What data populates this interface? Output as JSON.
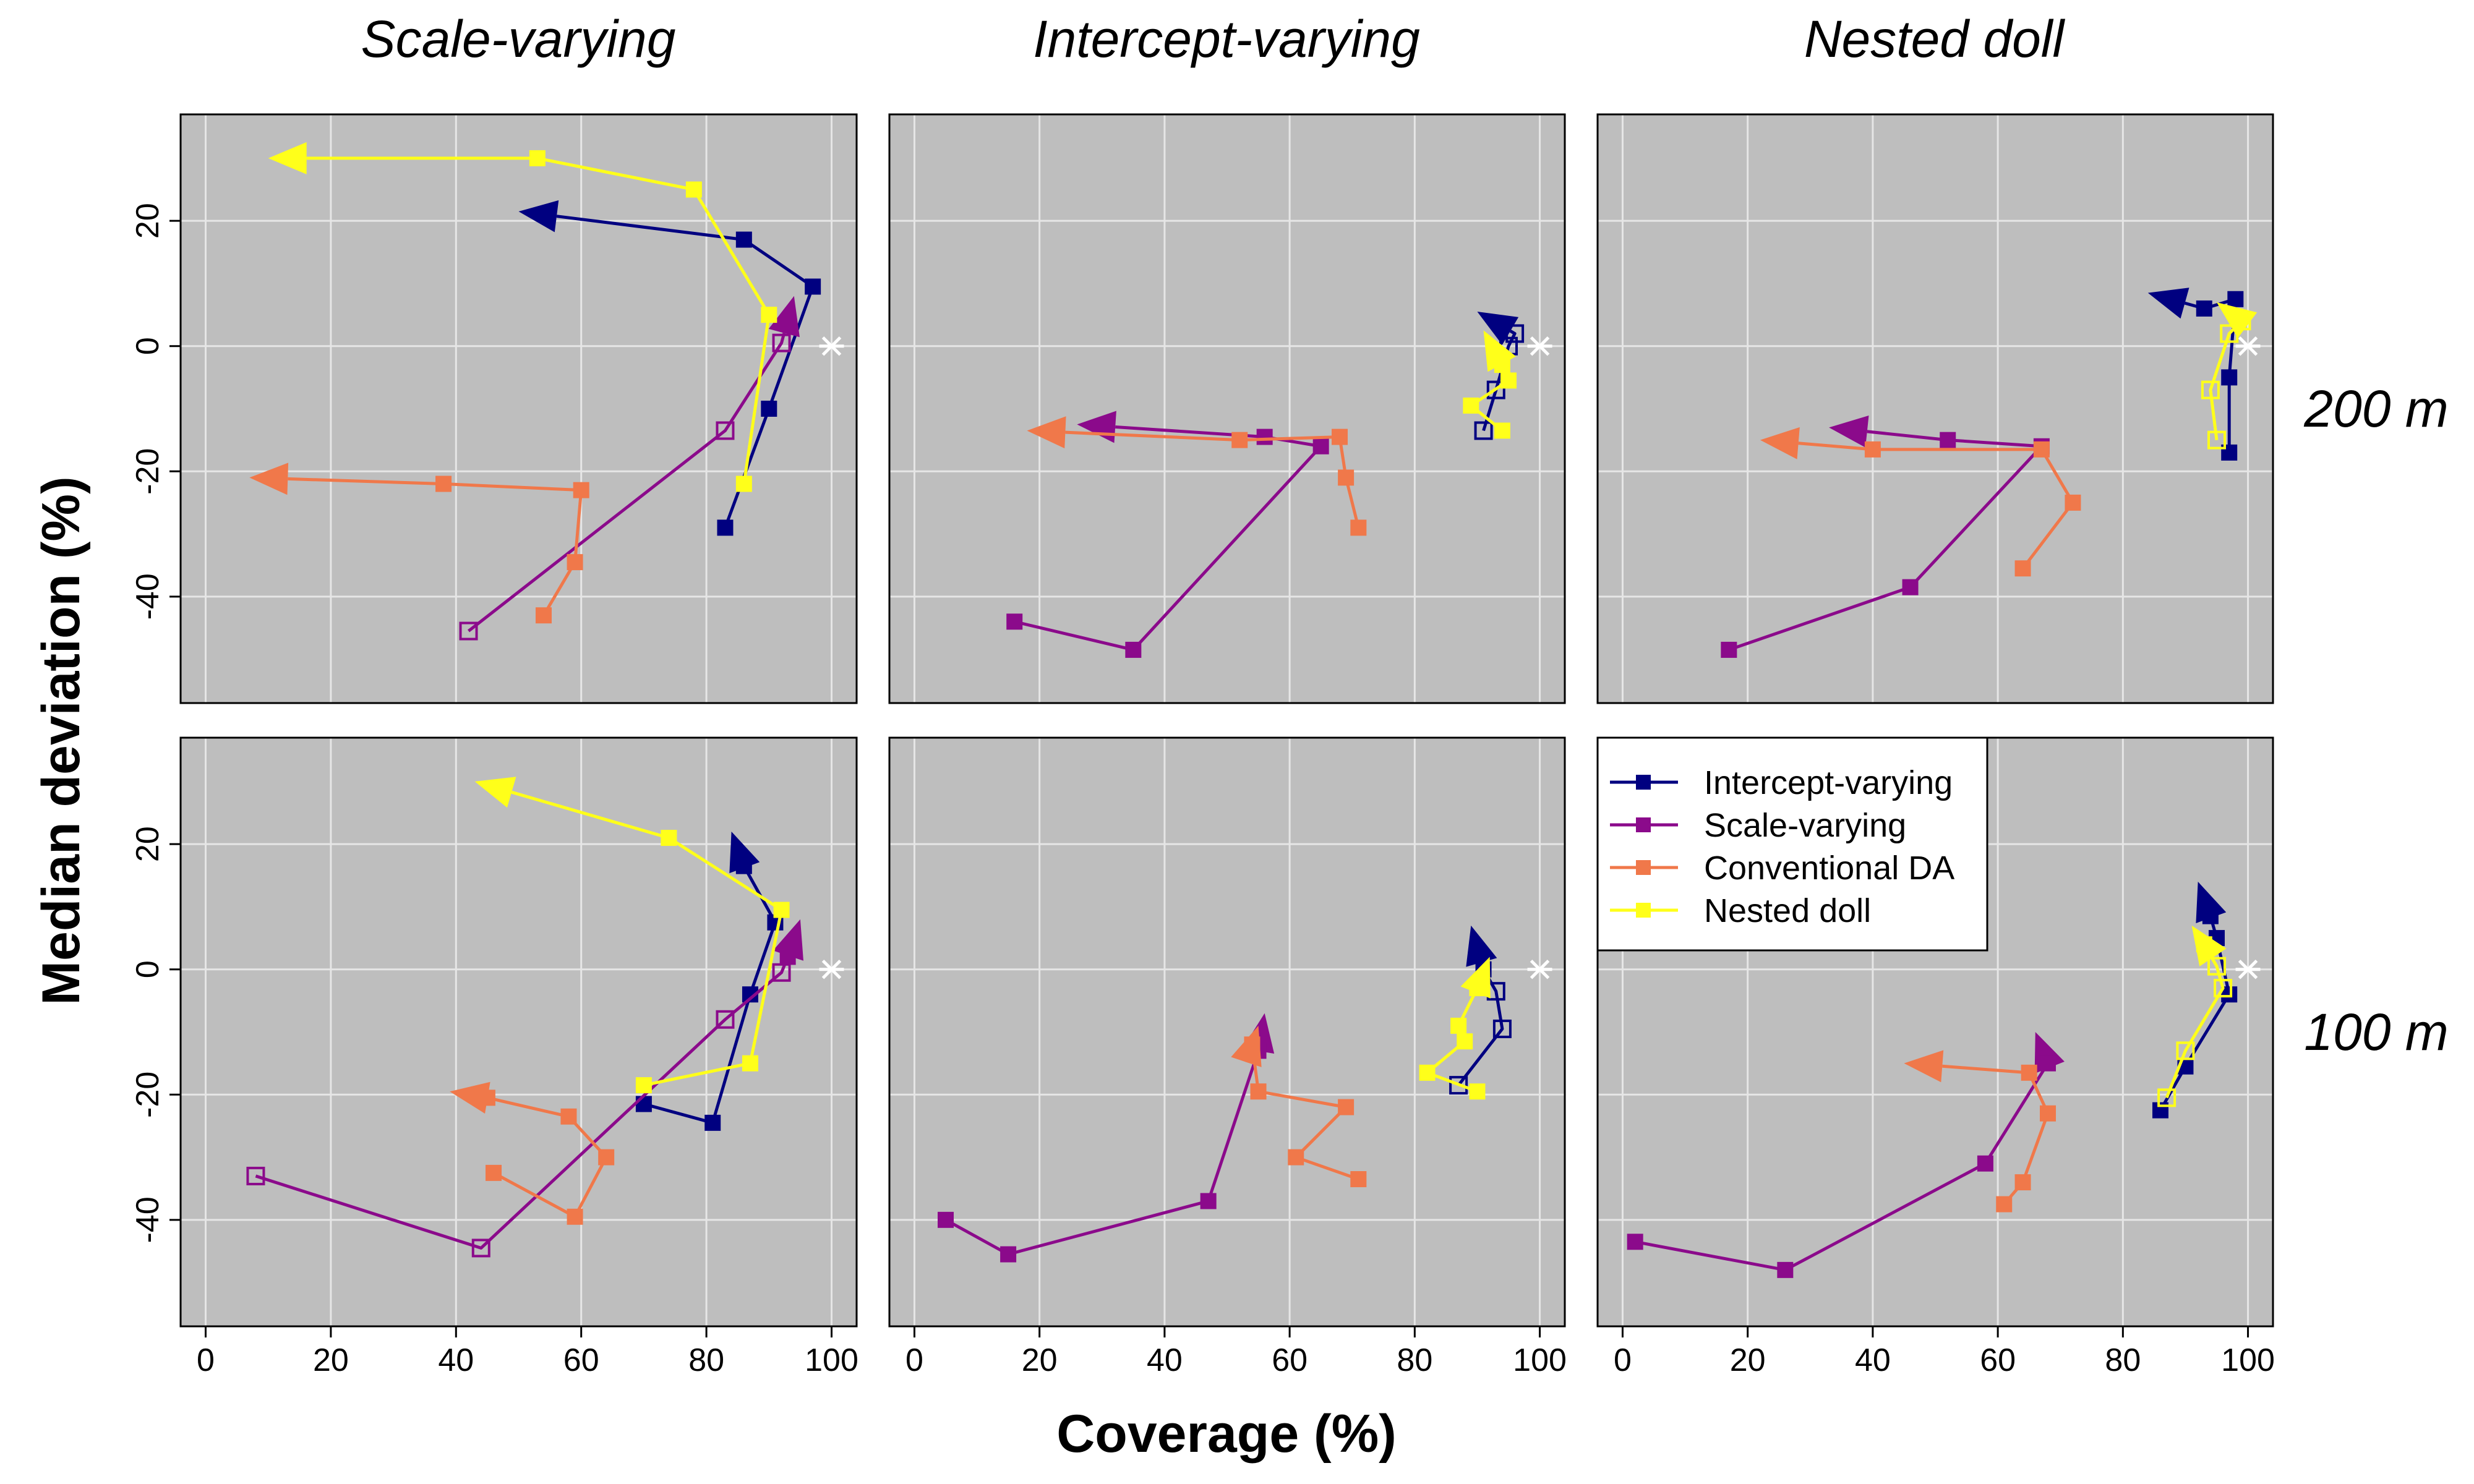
{
  "figure": {
    "col_titles": [
      "Scale-varying",
      "Intercept-varying",
      "Nested doll"
    ],
    "row_titles": [
      "200 m",
      "100 m"
    ],
    "xlabel": "Coverage (%)",
    "ylabel": "Median deviation (%)",
    "x_ticks": [
      0,
      20,
      40,
      60,
      80,
      100
    ],
    "y_ticks": [
      -40,
      -20,
      0,
      20
    ],
    "panel_background": "#bebebe",
    "grid_color": "#e6e6e6",
    "target_point": [
      100,
      0
    ]
  },
  "legend": {
    "items": [
      {
        "label": "Intercept-varying",
        "color": "#000080"
      },
      {
        "label": "Scale-varying",
        "color": "#8b0a8b"
      },
      {
        "label": "Conventional DA",
        "color": "#f0784a"
      },
      {
        "label": "Nested doll",
        "color": "#ffff1a"
      }
    ]
  },
  "chart_data": [
    {
      "type": "line",
      "panel": "Scale-varying / 200 m",
      "xlim": [
        -4,
        104
      ],
      "ylim": [
        -57,
        37
      ],
      "series": [
        {
          "name": "Intercept-varying",
          "color": "#000080",
          "points": [
            [
              83,
              -29
            ],
            [
              90,
              -10
            ],
            [
              97,
              9.5
            ],
            [
              86,
              17
            ],
            [
              50,
              21.5
            ]
          ],
          "open": [
            false,
            false,
            false,
            false,
            false
          ],
          "arrow": true
        },
        {
          "name": "Scale-varying",
          "color": "#8b0a8b",
          "points": [
            [
              42,
              -45.5
            ],
            [
              83,
              -13.5
            ],
            [
              92,
              0.5
            ],
            [
              94,
              8
            ]
          ],
          "open": [
            true,
            true,
            true,
            false
          ],
          "arrow": true
        },
        {
          "name": "Conventional DA",
          "color": "#f0784a",
          "points": [
            [
              54,
              -43
            ],
            [
              59,
              -34.5
            ],
            [
              60,
              -23
            ],
            [
              38,
              -22
            ],
            [
              7,
              -21
            ]
          ],
          "open": [
            false,
            false,
            false,
            false,
            false
          ],
          "arrow": true
        },
        {
          "name": "Nested doll",
          "color": "#ffff1a",
          "points": [
            [
              86,
              -22
            ],
            [
              90,
              5
            ],
            [
              78,
              25
            ],
            [
              53,
              30
            ],
            [
              10,
              30
            ]
          ],
          "open": [
            false,
            false,
            false,
            false,
            false
          ],
          "arrow": true
        }
      ]
    },
    {
      "type": "line",
      "panel": "Intercept-varying / 200 m",
      "xlim": [
        -4,
        104
      ],
      "ylim": [
        -57,
        37
      ],
      "series": [
        {
          "name": "Intercept-varying",
          "color": "#000080",
          "points": [
            [
              91,
              -13.5
            ],
            [
              93,
              -7
            ],
            [
              95,
              0
            ],
            [
              96,
              2
            ],
            [
              90,
              5.5
            ]
          ],
          "open": [
            true,
            true,
            true,
            true,
            false
          ],
          "arrow": true
        },
        {
          "name": "Scale-varying",
          "color": "#8b0a8b",
          "points": [
            [
              16,
              -44
            ],
            [
              35,
              -48.5
            ],
            [
              65,
              -16
            ],
            [
              56,
              -14.5
            ],
            [
              26,
              -12.5
            ]
          ],
          "open": [
            false,
            false,
            false,
            false,
            false
          ],
          "arrow": true
        },
        {
          "name": "Conventional DA",
          "color": "#f0784a",
          "points": [
            [
              71,
              -29
            ],
            [
              69,
              -21
            ],
            [
              68,
              -14.5
            ],
            [
              52,
              -15
            ],
            [
              18,
              -13.5
            ]
          ],
          "open": [
            false,
            false,
            false,
            false,
            false
          ],
          "arrow": true
        },
        {
          "name": "Nested doll",
          "color": "#ffff1a",
          "points": [
            [
              94,
              -13.5
            ],
            [
              89,
              -9.5
            ],
            [
              95,
              -5.5
            ],
            [
              94,
              -3
            ],
            [
              91,
              2.5
            ]
          ],
          "open": [
            false,
            false,
            false,
            false,
            false
          ],
          "arrow": true
        }
      ]
    },
    {
      "type": "line",
      "panel": "Nested doll / 200 m",
      "xlim": [
        -4,
        104
      ],
      "ylim": [
        -57,
        37
      ],
      "series": [
        {
          "name": "Intercept-varying",
          "color": "#000080",
          "points": [
            [
              97,
              -17
            ],
            [
              97,
              -5
            ],
            [
              98,
              7.5
            ],
            [
              93,
              6
            ],
            [
              84,
              8.5
            ]
          ],
          "open": [
            false,
            false,
            false,
            false,
            false
          ],
          "arrow": true
        },
        {
          "name": "Scale-varying",
          "color": "#8b0a8b",
          "points": [
            [
              17,
              -48.5
            ],
            [
              46,
              -38.5
            ],
            [
              67,
              -16
            ],
            [
              52,
              -15
            ],
            [
              33,
              -13
            ]
          ],
          "open": [
            false,
            false,
            false,
            false,
            false
          ],
          "arrow": true
        },
        {
          "name": "Conventional DA",
          "color": "#f0784a",
          "points": [
            [
              64,
              -35.5
            ],
            [
              72,
              -25
            ],
            [
              67,
              -16.5
            ],
            [
              40,
              -16.5
            ],
            [
              22,
              -15
            ]
          ],
          "open": [
            false,
            false,
            false,
            false,
            false
          ],
          "arrow": true
        },
        {
          "name": "Nested doll",
          "color": "#ffff1a",
          "points": [
            [
              95,
              -15
            ],
            [
              94,
              -7
            ],
            [
              97,
              2
            ],
            [
              99,
              4
            ],
            [
              95,
              7
            ]
          ],
          "open": [
            true,
            true,
            true,
            true,
            false
          ],
          "arrow": true
        }
      ]
    },
    {
      "type": "line",
      "panel": "Scale-varying / 100 m",
      "xlim": [
        -4,
        104
      ],
      "ylim": [
        -57,
        37
      ],
      "series": [
        {
          "name": "Intercept-varying",
          "color": "#000080",
          "points": [
            [
              70,
              -21.5
            ],
            [
              81,
              -24.5
            ],
            [
              87,
              -4
            ],
            [
              91,
              7.5
            ],
            [
              86,
              16.5
            ],
            [
              84,
              22
            ]
          ],
          "open": [
            false,
            false,
            false,
            false,
            false,
            false
          ],
          "arrow": true
        },
        {
          "name": "Scale-varying",
          "color": "#8b0a8b",
          "points": [
            [
              8,
              -33
            ],
            [
              44,
              -44.5
            ],
            [
              83,
              -8
            ],
            [
              92,
              -0.5
            ],
            [
              93,
              2
            ],
            [
              95,
              8
            ]
          ],
          "open": [
            true,
            true,
            true,
            true,
            false,
            false
          ],
          "arrow": true
        },
        {
          "name": "Conventional DA",
          "color": "#f0784a",
          "points": [
            [
              46,
              -32.5
            ],
            [
              59,
              -39.5
            ],
            [
              64,
              -30
            ],
            [
              58,
              -23.5
            ],
            [
              45,
              -20.5
            ],
            [
              39,
              -19.5
            ]
          ],
          "open": [
            false,
            false,
            false,
            false,
            false,
            false
          ],
          "arrow": true
        },
        {
          "name": "Nested doll",
          "color": "#ffff1a",
          "points": [
            [
              70,
              -18.5
            ],
            [
              87,
              -15
            ],
            [
              92,
              9.5
            ],
            [
              74,
              21
            ],
            [
              43,
              30
            ]
          ],
          "open": [
            false,
            false,
            false,
            false,
            false
          ],
          "arrow": true
        }
      ]
    },
    {
      "type": "line",
      "panel": "Intercept-varying / 100 m",
      "xlim": [
        -4,
        104
      ],
      "ylim": [
        -57,
        37
      ],
      "series": [
        {
          "name": "Intercept-varying",
          "color": "#000080",
          "points": [
            [
              87,
              -18.5
            ],
            [
              94,
              -9.5
            ],
            [
              93,
              -3.5
            ],
            [
              91,
              0
            ],
            [
              89,
              7
            ]
          ],
          "open": [
            true,
            true,
            true,
            false,
            false
          ],
          "arrow": true
        },
        {
          "name": "Scale-varying",
          "color": "#8b0a8b",
          "points": [
            [
              5,
              -40
            ],
            [
              15,
              -45.5
            ],
            [
              47,
              -37
            ],
            [
              55,
              -13
            ],
            [
              56,
              -7
            ]
          ],
          "open": [
            false,
            false,
            false,
            false,
            false
          ],
          "arrow": true
        },
        {
          "name": "Conventional DA",
          "color": "#f0784a",
          "points": [
            [
              71,
              -33.5
            ],
            [
              61,
              -30
            ],
            [
              69,
              -22
            ],
            [
              55,
              -19.5
            ],
            [
              54,
              -12
            ],
            [
              55,
              -9
            ]
          ],
          "open": [
            false,
            false,
            false,
            false,
            false,
            false
          ],
          "arrow": true
        },
        {
          "name": "Nested doll",
          "color": "#ffff1a",
          "points": [
            [
              90,
              -19.5
            ],
            [
              82,
              -16.5
            ],
            [
              88,
              -11.5
            ],
            [
              87,
              -9
            ],
            [
              90,
              -3
            ],
            [
              92,
              2
            ]
          ],
          "open": [
            false,
            false,
            false,
            false,
            false,
            false
          ],
          "arrow": true
        }
      ]
    },
    {
      "type": "line",
      "panel": "Nested doll / 100 m",
      "xlim": [
        -4,
        104
      ],
      "ylim": [
        -57,
        37
      ],
      "series": [
        {
          "name": "Intercept-varying",
          "color": "#000080",
          "points": [
            [
              86,
              -22.5
            ],
            [
              90,
              -15.5
            ],
            [
              97,
              -4
            ],
            [
              95,
              5
            ],
            [
              94,
              8.5
            ],
            [
              92,
              14
            ]
          ],
          "open": [
            false,
            false,
            false,
            false,
            false,
            false
          ],
          "arrow": true
        },
        {
          "name": "Scale-varying",
          "color": "#8b0a8b",
          "points": [
            [
              2,
              -43.5
            ],
            [
              26,
              -48
            ],
            [
              58,
              -31
            ],
            [
              68,
              -15
            ],
            [
              66,
              -10
            ]
          ],
          "open": [
            false,
            false,
            false,
            false,
            false
          ],
          "arrow": true
        },
        {
          "name": "Conventional DA",
          "color": "#f0784a",
          "points": [
            [
              61,
              -37.5
            ],
            [
              64,
              -34
            ],
            [
              68,
              -23
            ],
            [
              65,
              -16.5
            ],
            [
              45,
              -15
            ]
          ],
          "open": [
            false,
            false,
            false,
            false,
            false
          ],
          "arrow": true
        },
        {
          "name": "Nested doll",
          "color": "#ffff1a",
          "points": [
            [
              87,
              -20.5
            ],
            [
              90,
              -13
            ],
            [
              96,
              -3
            ],
            [
              95,
              0.5
            ],
            [
              93,
              4
            ],
            [
              91,
              7
            ]
          ],
          "open": [
            true,
            true,
            true,
            true,
            false,
            false
          ],
          "arrow": true
        }
      ]
    }
  ]
}
